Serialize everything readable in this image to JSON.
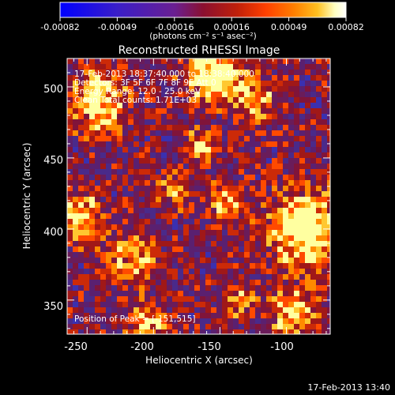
{
  "colorbar": {
    "tick_labels": [
      "-0.00082",
      "-0.00049",
      "-0.00016",
      "0.00016",
      "0.00049",
      "0.00082"
    ],
    "unit_label": "(photons cm⁻² s⁻¹ asec⁻²)",
    "colors": [
      "#0000ff",
      "#3a1ec8",
      "#6a1f92",
      "#8a1030",
      "#c0200a",
      "#ff4000",
      "#ff8000",
      "#ffc020",
      "#ffffc0",
      "#ffffff"
    ]
  },
  "image": {
    "title": "Reconstructed RHESSI Image",
    "annotations": [
      "17-Feb-2013 18:37:40.000 to 18:38:40.000",
      "Detectors: 3F 5F 6F 7F 8F 9F  Att 0",
      "Energy Range: 12.0 - 25.0 keV",
      "Clean     Total counts: 1.71E+03"
    ],
    "peak_label": "Position of Peak = [-151,515]",
    "x_axis": {
      "label": "Heliocentric X (arcsec)",
      "ticks": [
        "-250",
        "-200",
        "-150",
        "-100"
      ],
      "range": [
        -265,
        -67
      ]
    },
    "y_axis": {
      "label": "Heliocentric Y (arcsec)",
      "ticks": [
        "350",
        "400",
        "450",
        "500"
      ],
      "range": [
        326,
        520
      ]
    }
  },
  "footer": {
    "timestamp": "17-Feb-2013 13:40"
  }
}
